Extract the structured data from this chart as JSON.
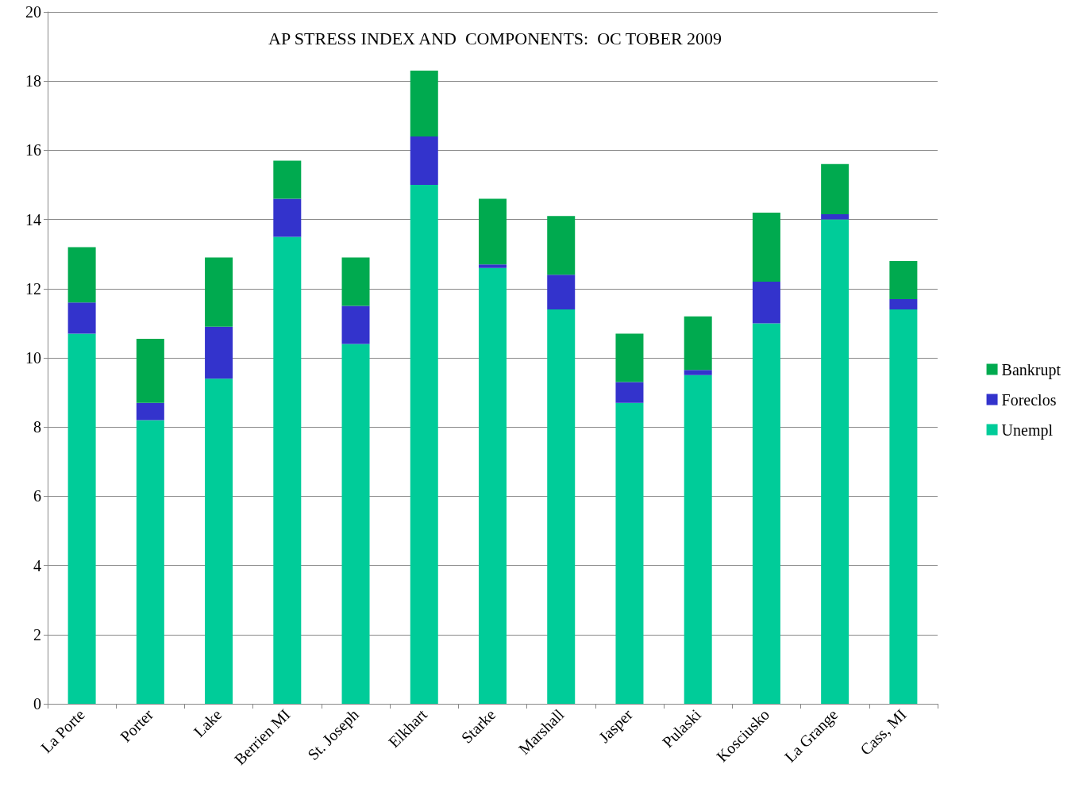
{
  "chart_data": {
    "type": "bar",
    "title": "AP STRESS INDEX AND  COMPONENTS:  OC TOBER 2009",
    "stacked": true,
    "grid": "y",
    "legend": "right",
    "ylim": [
      0,
      20
    ],
    "yticks": [
      0,
      2,
      4,
      6,
      8,
      10,
      12,
      14,
      16,
      18,
      20
    ],
    "categories": [
      "La Porte",
      "Porter",
      "Lake",
      "Berrien MI",
      "St. Joseph",
      "Elkhart",
      "Starke",
      "Marshall",
      "Jasper",
      "Pulaski",
      "Kosciusko",
      "La Grange",
      "Cass, MI"
    ],
    "series": [
      {
        "name": "Unempl",
        "color": "#00cc99",
        "values": [
          10.7,
          8.2,
          9.4,
          13.5,
          10.4,
          15.0,
          12.6,
          11.4,
          8.7,
          9.5,
          11.0,
          14.0,
          11.4
        ]
      },
      {
        "name": "Foreclos",
        "color": "#3333cc",
        "values": [
          0.9,
          0.5,
          1.5,
          1.1,
          1.1,
          1.4,
          0.1,
          1.0,
          0.6,
          0.15,
          1.2,
          0.15,
          0.3
        ]
      },
      {
        "name": "Bankrupt",
        "color": "#00aa4f",
        "values": [
          1.6,
          1.85,
          2.0,
          1.1,
          1.4,
          1.9,
          1.9,
          1.7,
          1.4,
          1.55,
          2.0,
          1.45,
          1.1
        ]
      }
    ]
  }
}
